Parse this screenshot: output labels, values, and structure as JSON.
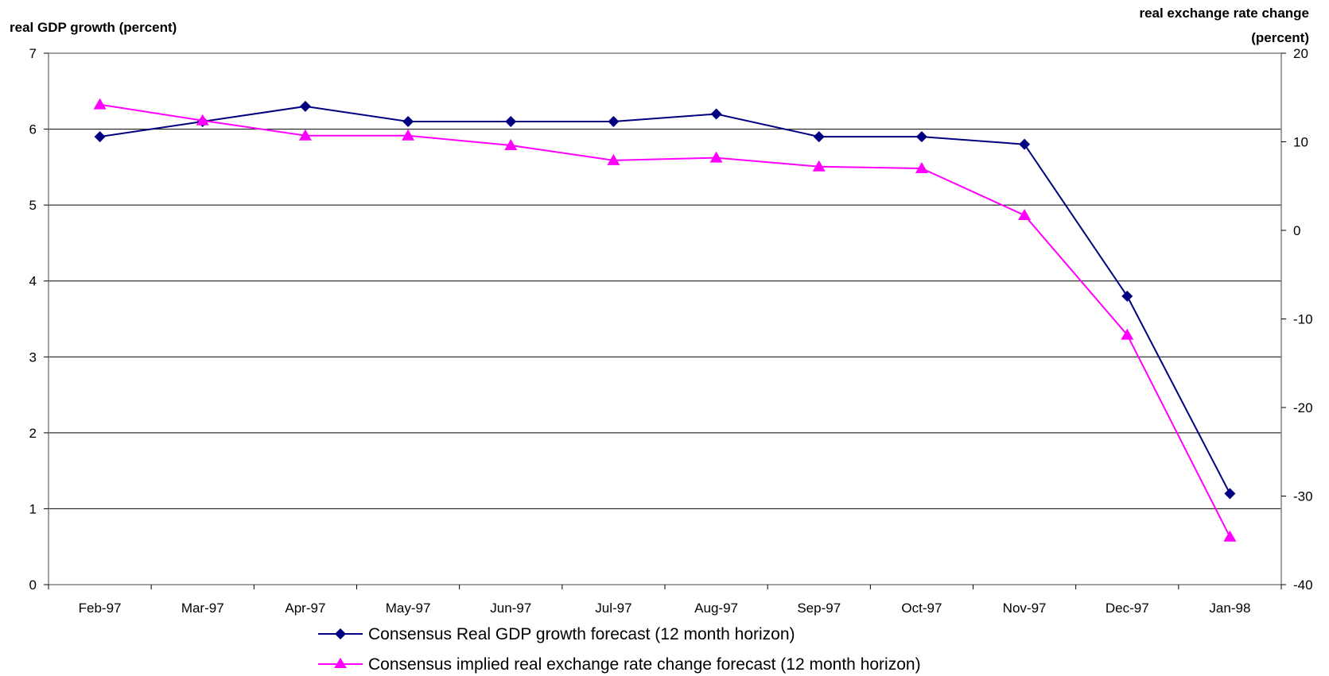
{
  "chart_data": {
    "type": "line",
    "categories": [
      "Feb-97",
      "Mar-97",
      "Apr-97",
      "May-97",
      "Jun-97",
      "Jul-97",
      "Aug-97",
      "Sep-97",
      "Oct-97",
      "Nov-97",
      "Dec-97",
      "Jan-98"
    ],
    "ylabel_left": "real GDP growth (percent)",
    "ylabel_right_line1": "real exchange rate change",
    "ylabel_right_line2": "(percent)",
    "ylim_left": [
      0,
      7
    ],
    "ylim_right": [
      -40,
      20
    ],
    "yticks_left": [
      "0",
      "1",
      "2",
      "3",
      "4",
      "5",
      "6",
      "7"
    ],
    "yticks_right": [
      "-40",
      "-30",
      "-20",
      "-10",
      "0",
      "10",
      "20"
    ],
    "grid": "horizontal",
    "legend_position": "bottom",
    "series": [
      {
        "name": "Consensus Real GDP growth forecast (12 month horizon)",
        "axis": "left",
        "marker": "diamond",
        "color": "#000080",
        "values": [
          5.9,
          6.1,
          6.3,
          6.1,
          6.1,
          6.1,
          6.2,
          5.9,
          5.9,
          5.8,
          3.8,
          1.2
        ]
      },
      {
        "name": "Consensus implied real exchange rate change forecast (12 month horizon)",
        "axis": "right",
        "marker": "triangle",
        "color": "#FF00FF",
        "values": [
          14.2,
          12.4,
          10.7,
          10.7,
          9.6,
          7.9,
          8.2,
          7.2,
          7.0,
          1.7,
          -11.8,
          -34.6
        ]
      }
    ]
  }
}
